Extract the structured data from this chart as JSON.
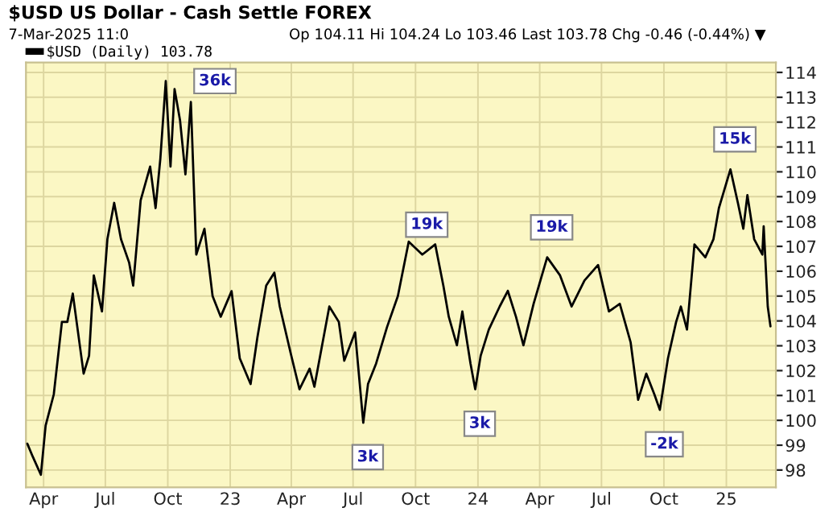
{
  "chart_data": {
    "type": "line",
    "title": "$USD US Dollar - Cash Settle FOREX",
    "subtitle": "7-Mar-2025 11:0",
    "annotations": [
      "Op 104.11 Hi 104.24 Lo 103.46 Last 103.78 Chg -0.46 (-0.44%) ▼",
      {
        "text": "36k",
        "x": "2022-09-28",
        "y": 113.65
      },
      {
        "text": "3k",
        "x": "2023-07-16",
        "y": 99.9
      },
      {
        "text": "19k",
        "x": "2023-10-11",
        "y": 106.67
      },
      {
        "text": "3k",
        "x": "2023-12-28",
        "y": 101.25
      },
      {
        "text": "19k",
        "x": "2024-04-12",
        "y": 106.56
      },
      {
        "text": "-2k",
        "x": "2024-09-25",
        "y": 100.42
      },
      {
        "text": "15k",
        "x": "2025-01-07",
        "y": 110.1
      }
    ],
    "x": [
      "2022-03-08",
      "2022-03-16",
      "2022-03-28",
      "2022-04-04",
      "2022-04-16",
      "2022-04-28",
      "2022-05-06",
      "2022-05-14",
      "2022-05-30",
      "2022-06-07",
      "2022-06-14",
      "2022-06-26",
      "2022-07-04",
      "2022-07-14",
      "2022-07-24",
      "2022-08-05",
      "2022-08-11",
      "2022-08-22",
      "2022-09-05",
      "2022-09-13",
      "2022-09-20",
      "2022-09-28",
      "2022-10-05",
      "2022-10-11",
      "2022-10-19",
      "2022-10-27",
      "2022-11-04",
      "2022-11-12",
      "2022-11-24",
      "2022-12-06",
      "2022-12-18",
      "2023-01-03",
      "2023-01-15",
      "2023-01-31",
      "2023-02-10",
      "2023-02-23",
      "2023-03-07",
      "2023-03-15",
      "2023-03-31",
      "2023-04-13",
      "2023-04-28",
      "2023-05-05",
      "2023-05-27",
      "2023-06-10",
      "2023-06-18",
      "2023-07-04",
      "2023-07-16",
      "2023-07-23",
      "2023-08-04",
      "2023-08-20",
      "2023-09-05",
      "2023-09-21",
      "2023-10-11",
      "2023-10-30",
      "2023-11-11",
      "2023-11-19",
      "2023-12-01",
      "2023-12-09",
      "2023-12-21",
      "2023-12-28",
      "2024-01-05",
      "2024-01-17",
      "2024-02-02",
      "2024-02-14",
      "2024-02-26",
      "2024-03-08",
      "2024-03-23",
      "2024-04-12",
      "2024-05-01",
      "2024-05-18",
      "2024-06-06",
      "2024-06-26",
      "2024-07-12",
      "2024-07-28",
      "2024-08-13",
      "2024-08-24",
      "2024-09-05",
      "2024-09-17",
      "2024-09-25",
      "2024-10-07",
      "2024-10-19",
      "2024-10-26",
      "2024-11-04",
      "2024-11-15",
      "2024-12-01",
      "2024-12-13",
      "2024-12-21",
      "2025-01-07",
      "2025-01-18",
      "2025-01-26",
      "2025-02-01",
      "2025-02-11",
      "2025-02-23",
      "2025-02-25",
      "2025-03-03",
      "2025-03-07"
    ],
    "series": [
      {
        "name": "$USD (Daily) 103.78",
        "color": "#000000",
        "values": [
          99.06,
          98.54,
          97.81,
          99.79,
          101.04,
          103.96,
          103.96,
          105.1,
          101.88,
          102.6,
          105.83,
          104.38,
          107.29,
          108.75,
          107.29,
          106.35,
          105.42,
          108.85,
          110.21,
          108.54,
          110.52,
          113.65,
          110.21,
          113.33,
          112.08,
          109.9,
          112.81,
          106.67,
          107.71,
          105.0,
          104.17,
          105.2,
          102.5,
          101.46,
          103.33,
          105.42,
          105.94,
          104.58,
          102.71,
          101.25,
          102.08,
          101.35,
          104.58,
          103.96,
          102.4,
          103.54,
          99.9,
          101.46,
          102.29,
          103.75,
          105.0,
          107.19,
          106.67,
          107.08,
          105.42,
          104.17,
          103.02,
          104.38,
          102.29,
          101.25,
          102.6,
          103.65,
          104.58,
          105.21,
          104.17,
          103.02,
          104.69,
          106.56,
          105.83,
          104.58,
          105.63,
          106.25,
          104.38,
          104.69,
          103.13,
          100.83,
          101.88,
          101.04,
          100.42,
          102.5,
          103.96,
          104.58,
          103.65,
          107.08,
          106.56,
          107.29,
          108.54,
          110.1,
          108.75,
          107.71,
          109.06,
          107.29,
          106.67,
          107.81,
          104.58,
          103.78
        ]
      }
    ],
    "xlim": [
      "2022-03-06",
      "2025-03-15"
    ],
    "xticks": [
      {
        "value": "2022-04-01",
        "label": "Apr"
      },
      {
        "value": "2022-07-01",
        "label": "Jul"
      },
      {
        "value": "2022-10-01",
        "label": "Oct"
      },
      {
        "value": "2023-01-01",
        "label": "23"
      },
      {
        "value": "2023-04-01",
        "label": "Apr"
      },
      {
        "value": "2023-07-01",
        "label": "Jul"
      },
      {
        "value": "2023-10-01",
        "label": "Oct"
      },
      {
        "value": "2024-01-01",
        "label": "24"
      },
      {
        "value": "2024-04-01",
        "label": "Apr"
      },
      {
        "value": "2024-07-01",
        "label": "Jul"
      },
      {
        "value": "2024-10-01",
        "label": "Oct"
      },
      {
        "value": "2025-01-01",
        "label": "25"
      }
    ],
    "ylim": [
      97.3,
      114.4
    ],
    "yticks": [
      98,
      99,
      100,
      101,
      102,
      103,
      104,
      105,
      106,
      107,
      108,
      109,
      110,
      111,
      112,
      113,
      114
    ],
    "grid": true,
    "legend": "top left"
  }
}
